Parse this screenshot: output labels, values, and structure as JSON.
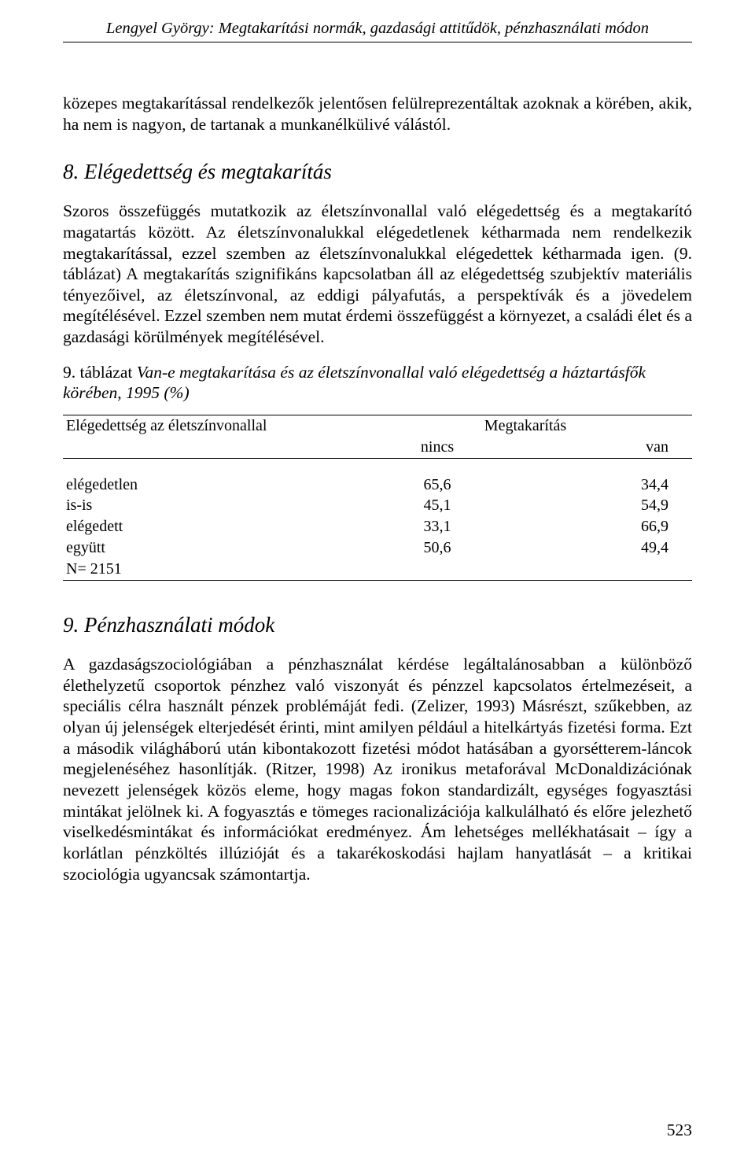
{
  "header": {
    "text": "Lengyel György: Megtakarítási normák, gazdasági attitűdök, pénzhasználati módon"
  },
  "intro_para": "közepes megtakarítással rendelkezők jelentősen felülreprezentáltak azoknak a körében, akik, ha nem is nagyon, de tartanak a munkanélkülivé válástól.",
  "section8": {
    "heading": "8. Elégedettség és megtakarítás",
    "body": "Szoros összefüggés mutatkozik az életszínvonallal való elégedettség és a megtakarító magatartás között. Az életszínvonalukkal elégedetlenek kétharmada nem rendelkezik megtakarítással, ezzel szemben az életszínvonalukkal elégedettek kétharmada igen. (9. táblázat) A megtakarítás szignifikáns kapcsolatban áll az elégedettség szubjektív materiális tényezőivel, az életszínvonal, az eddigi pályafutás, a perspektívák és a jövedelem megítélésével. Ezzel szemben nem mutat érdemi összefüggést a környezet, a családi élet és a gazdasági körülmények megítélésével."
  },
  "table9": {
    "caption_num": "9. táblázat",
    "caption_title": "Van-e megtakarítása és az életszínvonallal való elégedettség a háztartásfők körében, 1995 (%)",
    "col_left_header": "Elégedettség az életszínvonallal",
    "col_span_header": "Megtakarítás",
    "subcol1": "nincs",
    "subcol2": "van",
    "rows": [
      {
        "label": "elégedetlen",
        "c1": "65,6",
        "c2": "34,4"
      },
      {
        "label": "is-is",
        "c1": "45,1",
        "c2": "54,9"
      },
      {
        "label": "elégedett",
        "c1": "33,1",
        "c2": "66,9"
      },
      {
        "label": "együtt",
        "c1": "50,6",
        "c2": "49,4"
      }
    ],
    "note": "N= 2151"
  },
  "section9": {
    "heading": "9. Pénzhasználati módok",
    "body": "A gazdaságszociológiában a pénzhasználat kérdése legáltalánosabban a különböző élethelyzetű csoportok pénzhez való viszonyát és pénzzel kapcsolatos értelmezéseit, a speciális célra használt pénzek problémáját fedi. (Zelizer, 1993) Másrészt, szűkebben, az olyan új jelenségek elterjedését érinti, mint amilyen például a hitelkártyás fizetési forma. Ezt a második világháború után kibontakozott fizetési módot hatásában a gyorsétterem-láncok megjelenéséhez hasonlítják. (Ritzer, 1998) Az ironikus metaforával McDonaldizációnak nevezett jelenségek közös eleme, hogy magas fokon standardizált, egységes fogyasztási mintákat jelölnek ki. A fogyasztás e tömeges racionalizációja kalkulálható és előre jelezhető viselkedésmintákat és információkat eredményez. Ám lehetséges mellékhatásait – így a korlátlan pénzköltés illúzióját és a takarékoskodási hajlam hanyatlását – a kritikai szociológia ugyancsak számontartja."
  },
  "page_number": "523"
}
